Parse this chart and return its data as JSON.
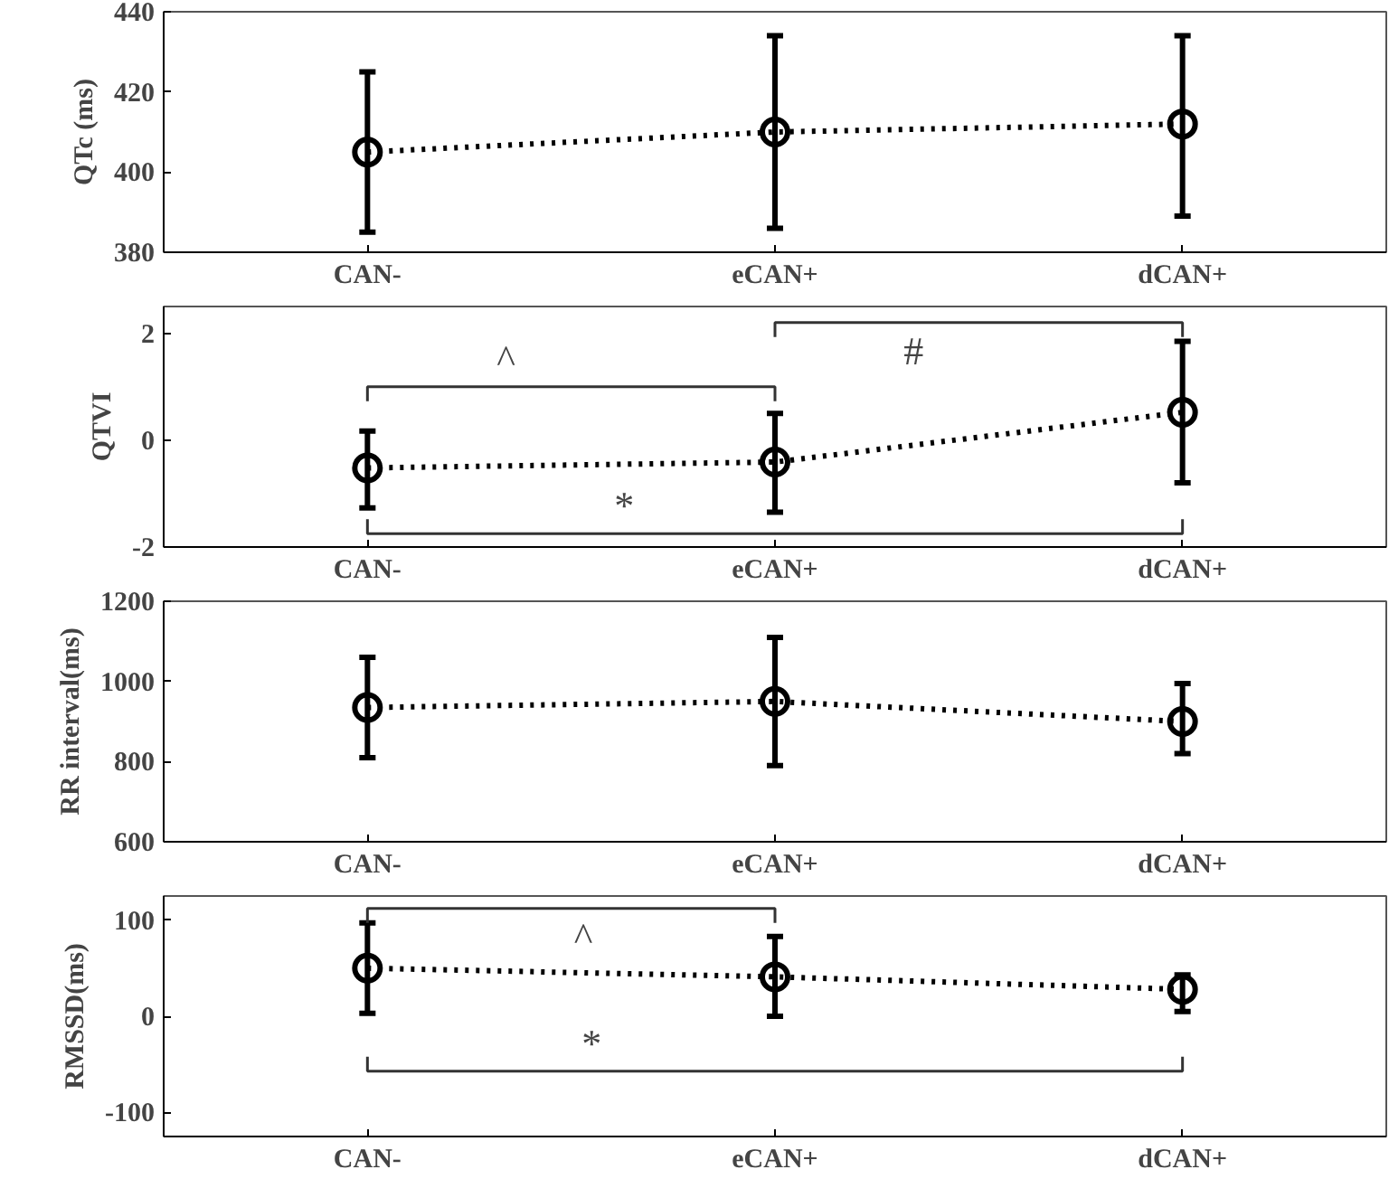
{
  "chart_data": [
    {
      "type": "line",
      "ylabel": "QTc (ms)",
      "categories": [
        "CAN-",
        "eCAN+",
        "dCAN+"
      ],
      "color": "#000000",
      "marker": "circle",
      "line_style": "dotted",
      "grid": false,
      "values": [
        405,
        410,
        412
      ],
      "errors": [
        [
          385,
          425
        ],
        [
          386,
          434
        ],
        [
          389,
          434
        ]
      ],
      "ylim": [
        380,
        440
      ],
      "yticks": [
        380,
        400,
        420,
        440
      ]
    },
    {
      "type": "line",
      "ylabel": "QTVI",
      "categories": [
        "CAN-",
        "eCAN+",
        "dCAN+"
      ],
      "color": "#000000",
      "marker": "circle",
      "line_style": "dotted",
      "grid": false,
      "values": [
        -0.52,
        -0.41,
        0.52
      ],
      "errors": [
        [
          -1.27,
          0.17
        ],
        [
          -1.35,
          0.5
        ],
        [
          -0.8,
          1.85
        ]
      ],
      "ylim": [
        -2,
        2.5
      ],
      "yticks": [
        -2,
        0,
        2
      ],
      "annotations": [
        "^",
        "#",
        "*"
      ]
    },
    {
      "type": "line",
      "ylabel": "RR interval(ms)",
      "categories": [
        "CAN-",
        "eCAN+",
        "dCAN+"
      ],
      "color": "#000000",
      "marker": "circle",
      "line_style": "dotted",
      "grid": false,
      "values": [
        935,
        950,
        900
      ],
      "errors": [
        [
          810,
          1060
        ],
        [
          790,
          1110
        ],
        [
          820,
          995
        ]
      ],
      "ylim": [
        600,
        1200
      ],
      "yticks": [
        600,
        800,
        1000,
        1200
      ]
    },
    {
      "type": "line",
      "ylabel": "RMSSD(ms)",
      "categories": [
        "CAN-",
        "eCAN+",
        "dCAN+"
      ],
      "color": "#000000",
      "marker": "circle",
      "line_style": "dotted",
      "grid": false,
      "values": [
        50,
        41,
        28
      ],
      "errors": [
        [
          3,
          97
        ],
        [
          0,
          83
        ],
        [
          5,
          43
        ]
      ],
      "ylim": [
        -125,
        125
      ],
      "yticks": [
        -100,
        0,
        100
      ],
      "annotations": [
        "^",
        "*"
      ]
    }
  ]
}
